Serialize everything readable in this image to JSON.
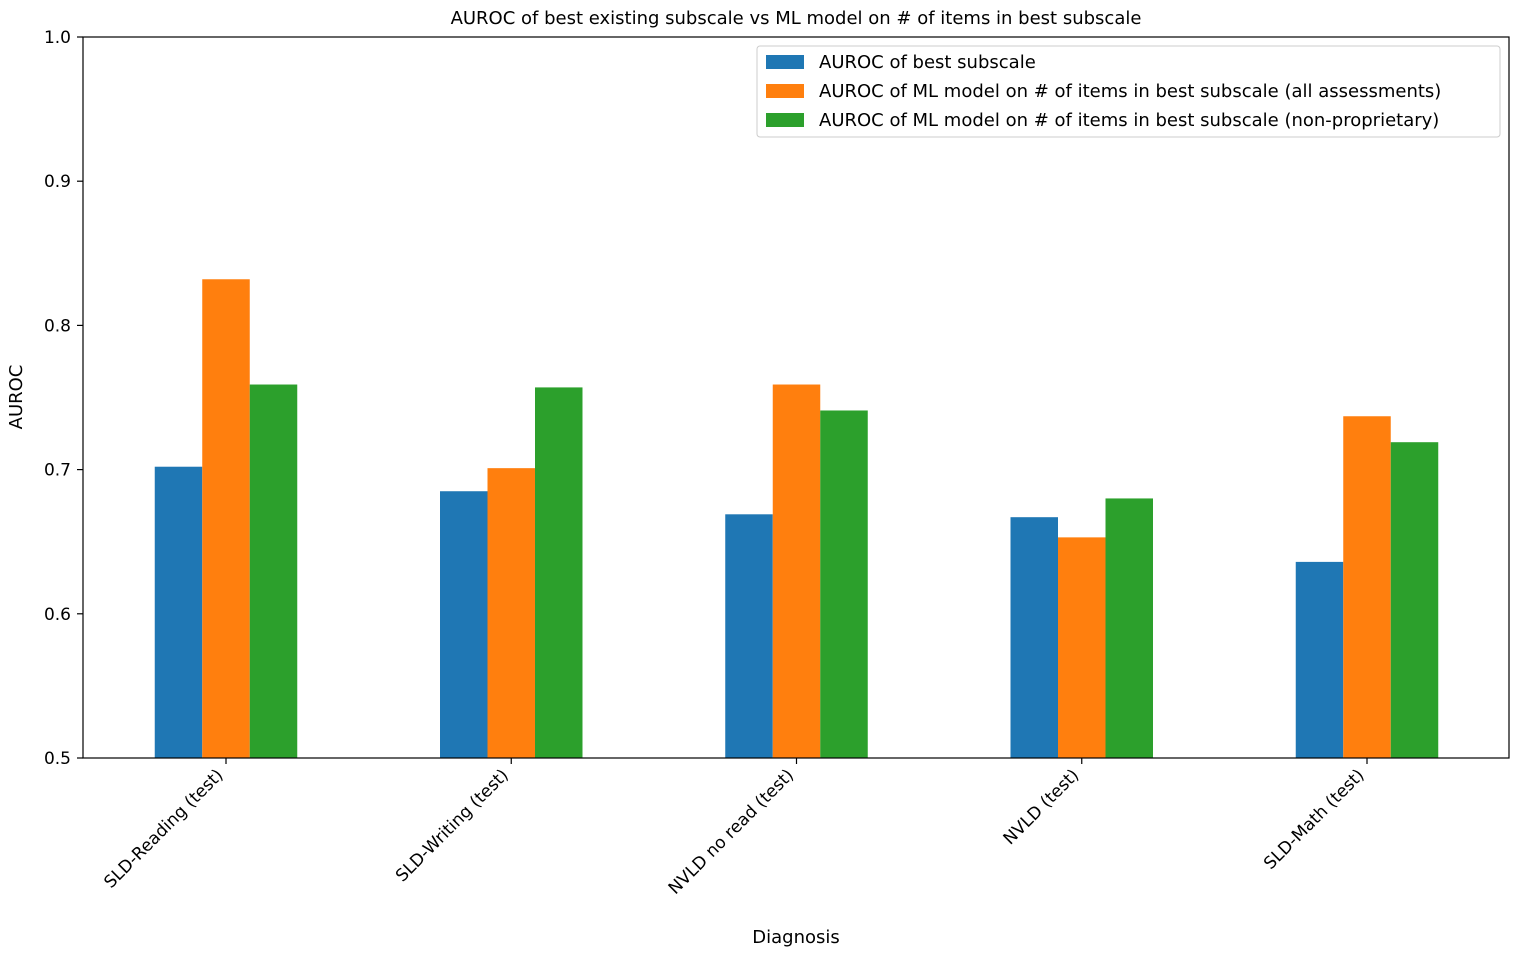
{
  "chart_data": {
    "type": "bar",
    "title": "AUROC of best existing subscale vs ML model on # of items in best subscale",
    "xlabel": "Diagnosis",
    "ylabel": "AUROC",
    "ylim": [
      0.5,
      1.0
    ],
    "yticks": [
      "0.5",
      "0.6",
      "0.7",
      "0.8",
      "0.9",
      "1.0"
    ],
    "categories": [
      "SLD-Reading (test)",
      "SLD-Writing (test)",
      "NVLD no read (test)",
      "NVLD (test)",
      "SLD-Math (test)"
    ],
    "series": [
      {
        "name": "AUROC of best subscale",
        "color": "#1f77b4",
        "values": [
          0.702,
          0.685,
          0.669,
          0.667,
          0.636
        ]
      },
      {
        "name": "AUROC of ML model on # of items in best subscale (all assessments)",
        "color": "#ff7f0e",
        "values": [
          0.832,
          0.701,
          0.759,
          0.653,
          0.737
        ]
      },
      {
        "name": "AUROC of ML model on # of items in best subscale (non-proprietary)",
        "color": "#2ca02c",
        "values": [
          0.759,
          0.757,
          0.741,
          0.68,
          0.719
        ]
      }
    ],
    "grid": false,
    "legend_position": "top-right"
  }
}
